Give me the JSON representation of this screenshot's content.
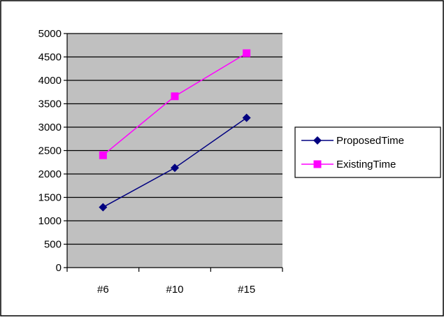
{
  "chart_data": {
    "type": "line",
    "categories": [
      "#6",
      "#10",
      "#15"
    ],
    "ylim": [
      0,
      5000
    ],
    "yticks": [
      0,
      500,
      1000,
      1500,
      2000,
      2500,
      3000,
      3500,
      4000,
      4500,
      5000
    ],
    "grid": true,
    "plot_background": "#c0c0c0",
    "legend": "right",
    "series": [
      {
        "name": "ProposedTime",
        "values": [
          1290,
          2130,
          3200
        ],
        "color": "#000080",
        "marker": "diamond"
      },
      {
        "name": "ExistingTime",
        "values": [
          2400,
          3660,
          4580
        ],
        "color": "#ff00ff",
        "marker": "square"
      }
    ]
  }
}
